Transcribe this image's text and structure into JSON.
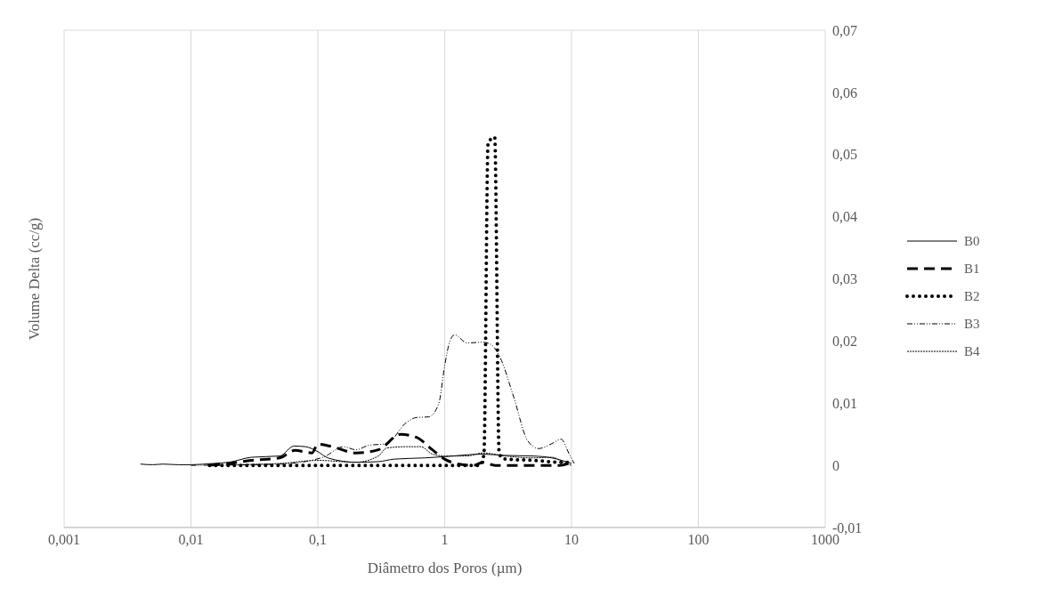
{
  "chart_data": {
    "type": "line",
    "xlabel": "Diâmetro dos Poros (µm)",
    "ylabel": "Volume Delta (cc/g)",
    "log": "x",
    "grid": true,
    "legend": "right",
    "marker": "none",
    "xlim": [
      0.001,
      1000
    ],
    "xticks": [
      {
        "value": 0.001,
        "label": "0,001"
      },
      {
        "value": 0.01,
        "label": "0,01"
      },
      {
        "value": 0.1,
        "label": "0,1"
      },
      {
        "value": 1,
        "label": "1"
      },
      {
        "value": 10,
        "label": "10"
      },
      {
        "value": 100,
        "label": "100"
      },
      {
        "value": 1000,
        "label": "1000"
      }
    ],
    "ylim": [
      -0.01,
      0.07
    ],
    "yticks": [
      {
        "value": -0.01,
        "label": "-0,01"
      },
      {
        "value": 0,
        "label": "0"
      },
      {
        "value": 0.01,
        "label": "0,01"
      },
      {
        "value": 0.02,
        "label": "0,02"
      },
      {
        "value": 0.03,
        "label": "0,03"
      },
      {
        "value": 0.04,
        "label": "0,04"
      },
      {
        "value": 0.05,
        "label": "0,05"
      },
      {
        "value": 0.06,
        "label": "0,06"
      },
      {
        "value": 0.07,
        "label": "0,07"
      }
    ],
    "series": [
      {
        "name": "B0",
        "color": "#000000",
        "line_style": "solid",
        "x": [
          0.004,
          0.005,
          0.006,
          0.008,
          0.01,
          0.015,
          0.02,
          0.03,
          0.05,
          0.065,
          0.08,
          0.1,
          0.12,
          0.2,
          0.3,
          0.4,
          0.7,
          1,
          2,
          3,
          5,
          7,
          10
        ],
        "values": [
          0.0002,
          0.0001,
          0.0002,
          0.0001,
          0.0001,
          0.0003,
          0.0005,
          0.0013,
          0.0015,
          0.0031,
          0.003,
          0.0022,
          0.0012,
          0.0005,
          0.0006,
          0.001,
          0.0012,
          0.0014,
          0.0018,
          0.0016,
          0.0015,
          0.0012,
          0.0003
        ]
      },
      {
        "name": "B1",
        "color": "#000000",
        "line_style": "dashed",
        "x": [
          0.014,
          0.02,
          0.03,
          0.05,
          0.066,
          0.09,
          0.1,
          0.13,
          0.2,
          0.3,
          0.45,
          0.6,
          0.8,
          1,
          1.3,
          1.7,
          2,
          2.5,
          5,
          8,
          10
        ],
        "values": [
          0,
          0.0003,
          0.0008,
          0.0012,
          0.0024,
          0.002,
          0.0034,
          0.003,
          0.002,
          0.0025,
          0.005,
          0.0045,
          0.0025,
          0.001,
          0.0002,
          0,
          0.0005,
          0,
          0,
          0,
          0.0005
        ]
      },
      {
        "name": "B2",
        "color": "#000000",
        "line_style": "dotted",
        "x": [
          0.014,
          0.1,
          1,
          1.9,
          2.04,
          2.2,
          2.48,
          2.69,
          3,
          5,
          8,
          10
        ],
        "values": [
          0,
          0,
          0,
          0,
          0.0018,
          0.0519,
          0.0528,
          0.0018,
          0.001,
          0.0008,
          0.0005,
          0.0005
        ]
      },
      {
        "name": "B3",
        "color": "#000000",
        "line_style": "dashed",
        "x": [
          0.01,
          0.05,
          0.11,
          0.16,
          0.2,
          0.25,
          0.35,
          0.5,
          0.6,
          0.75,
          0.9,
          1,
          1.1,
          1.2,
          1.5,
          2,
          2.3,
          2.7,
          3.5,
          4.5,
          5.5,
          7,
          8.3,
          9.5,
          10.5
        ],
        "values": [
          0,
          0.0002,
          0.0013,
          0.003,
          0.0025,
          0.0032,
          0.0035,
          0.0069,
          0.0077,
          0.0078,
          0.01,
          0.016,
          0.02,
          0.021,
          0.0197,
          0.0198,
          0.0195,
          0.0176,
          0.011,
          0.004,
          0.0027,
          0.0035,
          0.0042,
          0.002,
          0.0003
        ]
      },
      {
        "name": "B4",
        "color": "#000000",
        "line_style": "dotted",
        "x": [
          0.02,
          0.05,
          0.1,
          0.2,
          0.3,
          0.35,
          0.5,
          0.65,
          0.8,
          1,
          1.5,
          2,
          3,
          5,
          7,
          9,
          10
        ],
        "values": [
          0.0001,
          0.0003,
          0.0008,
          0.0005,
          0.0015,
          0.0028,
          0.003,
          0.003,
          0.0018,
          0.0015,
          0.0015,
          0.002,
          0.0015,
          0.0012,
          0.0013,
          0.0003,
          0
        ]
      }
    ]
  }
}
